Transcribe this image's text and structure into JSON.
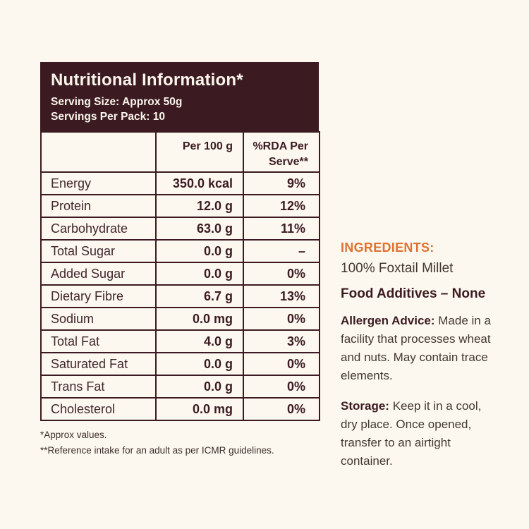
{
  "colors": {
    "background": "#FCF7EF",
    "panel_brown": "#3B1B21",
    "accent_orange": "#E0722F",
    "body_text": "#403931"
  },
  "panel": {
    "title": "Nutritional Information*",
    "serving_size": "Serving Size: Approx 50g",
    "servings_per_pack": "Servings Per Pack: 10"
  },
  "table": {
    "columns": [
      "",
      "Per 100 g",
      "%RDA Per Serve**"
    ],
    "rows": [
      {
        "label": "Energy",
        "per_100g": "350.0 kcal",
        "rda": "9%"
      },
      {
        "label": "Protein",
        "per_100g": "12.0 g",
        "rda": "12%"
      },
      {
        "label": "Carbohydrate",
        "per_100g": "63.0 g",
        "rda": "11%"
      },
      {
        "label": "Total Sugar",
        "per_100g": "0.0 g",
        "rda": "–"
      },
      {
        "label": "Added Sugar",
        "per_100g": "0.0 g",
        "rda": "0%"
      },
      {
        "label": "Dietary Fibre",
        "per_100g": "6.7 g",
        "rda": "13%"
      },
      {
        "label": "Sodium",
        "per_100g": "0.0 mg",
        "rda": "0%"
      },
      {
        "label": "Total Fat",
        "per_100g": "4.0 g",
        "rda": "3%"
      },
      {
        "label": "Saturated Fat",
        "per_100g": "0.0 g",
        "rda": "0%"
      },
      {
        "label": "Trans Fat",
        "per_100g": "0.0 g",
        "rda": "0%"
      },
      {
        "label": "Cholesterol",
        "per_100g": "0.0 mg",
        "rda": "0%"
      }
    ]
  },
  "footnotes": {
    "approx": "*Approx values.",
    "reference": "**Reference intake for an adult as per ICMR guidelines."
  },
  "ingredients": {
    "heading": "INGREDIENTS:",
    "value": "100% Foxtail Millet",
    "additives": "Food Additives – None"
  },
  "allergen": {
    "label": "Allergen Advice:",
    "text": " Made in a facility that processes wheat and nuts. May contain trace elements."
  },
  "storage": {
    "label": "Storage:",
    "text": " Keep it in a cool, dry place. Once opened, transfer to an airtight container."
  }
}
